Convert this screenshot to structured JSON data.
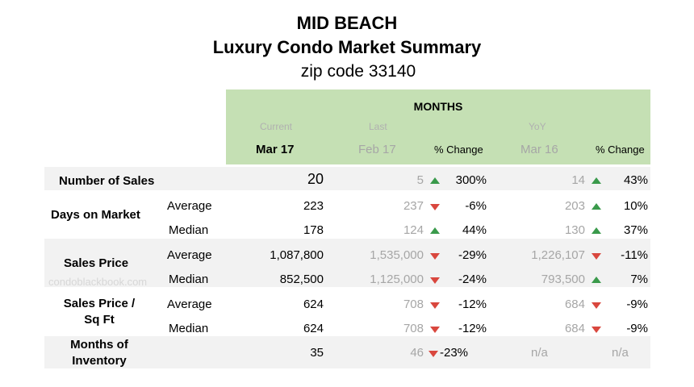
{
  "title": {
    "line1": "MID BEACH",
    "line2": "Luxury Condo Market Summary",
    "line3": "zip code 33140"
  },
  "header": {
    "months": "MONTHS",
    "current_sub": "Current",
    "last_sub": "Last",
    "yoy_sub": "YoY",
    "current": "Mar 17",
    "last": "Feb 17",
    "pct_change_1": "% Change",
    "yoy": "Mar 16",
    "pct_change_2": "% Change"
  },
  "watermark": "condoblackbook.com",
  "labels": {
    "sales": "Number of Sales",
    "dom": "Days on Market",
    "price": "Sales Price",
    "psf_1": "Sales Price /",
    "psf_2": "Sq Ft",
    "inv_1": "Months of",
    "inv_2": "Inventory",
    "average": "Average",
    "median": "Median",
    "dollar": "$"
  },
  "rows": [
    {
      "current": "20",
      "last": "5",
      "chg1": "300%",
      "dir1": "up",
      "yoy": "14",
      "chg2": "43%",
      "dir2": "up"
    },
    {
      "current": "223",
      "last": "237",
      "chg1": "-6%",
      "dir1": "down",
      "yoy": "203",
      "chg2": "10%",
      "dir2": "up"
    },
    {
      "current": "178",
      "last": "124",
      "chg1": "44%",
      "dir1": "up",
      "yoy": "130",
      "chg2": "37%",
      "dir2": "up"
    },
    {
      "current": "1,087,800",
      "last": "1,535,000",
      "chg1": "-29%",
      "dir1": "down",
      "yoy": "1,226,107",
      "chg2": "-11%",
      "dir2": "down"
    },
    {
      "current": "852,500",
      "last": "1,125,000",
      "chg1": "-24%",
      "dir1": "down",
      "yoy": "793,500",
      "chg2": "7%",
      "dir2": "up"
    },
    {
      "current": "624",
      "last": "708",
      "chg1": "-12%",
      "dir1": "down",
      "yoy": "684",
      "chg2": "-9%",
      "dir2": "down"
    },
    {
      "current": "624",
      "last": "708",
      "chg1": "-12%",
      "dir1": "down",
      "yoy": "684",
      "chg2": "-9%",
      "dir2": "down"
    },
    {
      "current": "35",
      "last": "46",
      "chg1": "-23%",
      "dir1": "down",
      "yoy": "n/a",
      "chg2": "n/a",
      "dir2": "none"
    }
  ],
  "colors": {
    "header_green": "#c5e0b4",
    "band_gray": "#f2f2f2",
    "up": "#3a9a4b",
    "down": "#d9473e"
  }
}
